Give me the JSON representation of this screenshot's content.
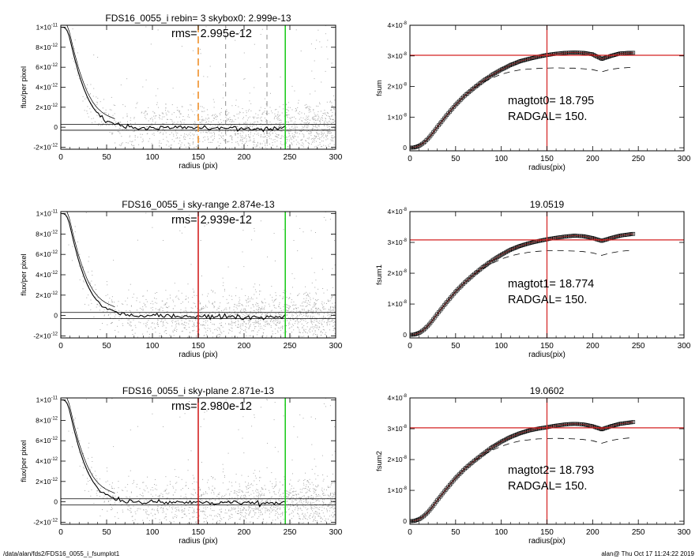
{
  "footer": {
    "path": "/data/alan/fds2/FDS16_0055_i_fsumplot1",
    "user_time": "alan@  Thu Oct 17 11:24:22 2019"
  },
  "colors": {
    "scatter": "#aaaaaa",
    "profile": "#000000",
    "red_marker": "#d42020",
    "green_marker": "#22cc22",
    "orange_marker": "#f0902a"
  },
  "chart_data": [
    {
      "type": "scatter",
      "title": "FDS16_0055_i rebin= 3    skybox0:  2.999e-13",
      "annotation": "rms= 2.995e-12",
      "xlabel": "radius (pix)",
      "ylabel": "flux/per pixel",
      "xlim": [
        0,
        300
      ],
      "ylim": [
        -2.2e-12,
        1.02e-11
      ],
      "xticks": [
        "0",
        "50",
        "100",
        "150",
        "200",
        "250",
        "300"
      ],
      "yticks": [
        {
          "v": 1e-11,
          "m": "1×10",
          "e": "-11"
        },
        {
          "v": 8e-12,
          "m": "8×10",
          "e": "-12"
        },
        {
          "v": 6e-12,
          "m": "6×10",
          "e": "-12"
        },
        {
          "v": 4e-12,
          "m": "4×10",
          "e": "-12"
        },
        {
          "v": 2e-12,
          "m": "2×10",
          "e": "-12"
        },
        {
          "v": 0,
          "m": "0",
          "e": ""
        },
        {
          "v": -2e-12,
          "m": "-2×10",
          "e": "-12"
        }
      ],
      "profile": {
        "x": [
          1,
          3,
          5,
          8,
          10,
          12,
          15,
          18,
          20,
          25,
          30,
          35,
          40,
          45,
          50,
          60,
          70,
          80,
          90,
          100,
          110,
          120,
          130,
          140,
          150,
          160,
          170,
          180,
          190,
          200,
          210,
          220,
          230,
          240,
          245
        ],
        "y": [
          1e-11,
          1e-11,
          9.9e-12,
          9.5e-12,
          8.8e-12,
          8e-12,
          6.9e-12,
          5.9e-12,
          5.2e-12,
          3.9e-12,
          2.8e-12,
          2e-12,
          1.4e-12,
          1e-12,
          7e-13,
          3e-13,
          1e-13,
          0,
          -1e-13,
          0,
          -5e-14,
          -1e-13,
          0,
          -1e-13,
          0,
          -1e-13,
          -2e-13,
          0,
          -1e-13,
          -2e-13,
          -1e-13,
          -2e-13,
          -1e-13,
          -1e-13,
          0
        ]
      },
      "hlines": [
        3e-13,
        -3e-13
      ],
      "vlines": [
        {
          "x": 150,
          "color": "orange",
          "dashed": true
        },
        {
          "x": 245,
          "color": "green",
          "dashed": false
        }
      ],
      "faint_dashed_vlines": [
        180,
        225
      ],
      "scatter_cloud": true
    },
    {
      "type": "line",
      "title": "",
      "annotation": [
        "magtot0=  18.795",
        "RADGAL=    150."
      ],
      "xlabel": "radius(pix)",
      "ylabel": "fsum",
      "xlim": [
        0,
        300
      ],
      "ylim": [
        -1e-09,
        4e-08
      ],
      "xticks": [
        "0",
        "50",
        "100",
        "150",
        "200",
        "250",
        "300"
      ],
      "yticks": [
        {
          "v": 4e-08,
          "m": "4×10",
          "e": "-8"
        },
        {
          "v": 3e-08,
          "m": "3×10",
          "e": "-8"
        },
        {
          "v": 2e-08,
          "m": "2×10",
          "e": "-8"
        },
        {
          "v": 1e-08,
          "m": "1×10",
          "e": "-8"
        },
        {
          "v": 0,
          "m": "0",
          "e": ""
        }
      ],
      "main_curve": {
        "x": [
          0,
          5,
          10,
          15,
          20,
          25,
          30,
          40,
          50,
          60,
          70,
          80,
          90,
          100,
          110,
          120,
          130,
          140,
          150,
          160,
          170,
          180,
          190,
          200,
          210,
          220,
          230,
          240,
          245
        ],
        "y": [
          0,
          1e-10,
          6e-10,
          1.6e-09,
          3e-09,
          4.8e-09,
          6.8e-09,
          1.05e-08,
          1.4e-08,
          1.7e-08,
          1.95e-08,
          2.18e-08,
          2.38e-08,
          2.55e-08,
          2.7e-08,
          2.82e-08,
          2.9e-08,
          2.97e-08,
          3.03e-08,
          3.07e-08,
          3.1e-08,
          3.11e-08,
          3.1e-08,
          3.05e-08,
          2.9e-08,
          3e-08,
          3.08e-08,
          3.1e-08,
          3.1e-08
        ]
      },
      "dashed_curve": {
        "x": [
          70,
          80,
          90,
          100,
          110,
          120,
          130,
          140,
          150,
          160,
          170,
          180,
          190,
          200,
          210,
          220,
          230,
          240,
          245
        ],
        "y": [
          1.95e-08,
          2.13e-08,
          2.28e-08,
          2.4e-08,
          2.48e-08,
          2.54e-08,
          2.57e-08,
          2.59e-08,
          2.6e-08,
          2.61e-08,
          2.6e-08,
          2.6e-08,
          2.58e-08,
          2.55e-08,
          2.48e-08,
          2.56e-08,
          2.6e-08,
          2.62e-08,
          2.63e-08
        ]
      },
      "hline": 3.02e-08,
      "vline": 150
    },
    {
      "type": "scatter",
      "title": "FDS16_0055_i sky-range  2.874e-13",
      "annotation": "rms= 2.939e-12",
      "xlabel": "radius (pix)",
      "ylabel": "flux/per pixel",
      "xlim": [
        0,
        300
      ],
      "ylim": [
        -2.2e-12,
        1.02e-11
      ],
      "xticks": [
        "0",
        "50",
        "100",
        "150",
        "200",
        "250",
        "300"
      ],
      "yticks": [
        {
          "v": 1e-11,
          "m": "1×10",
          "e": "-11"
        },
        {
          "v": 8e-12,
          "m": "8×10",
          "e": "-12"
        },
        {
          "v": 6e-12,
          "m": "6×10",
          "e": "-12"
        },
        {
          "v": 4e-12,
          "m": "4×10",
          "e": "-12"
        },
        {
          "v": 2e-12,
          "m": "2×10",
          "e": "-12"
        },
        {
          "v": 0,
          "m": "0",
          "e": ""
        },
        {
          "v": -2e-12,
          "m": "-2×10",
          "e": "-12"
        }
      ],
      "profile": {
        "x": [
          1,
          3,
          5,
          8,
          10,
          12,
          15,
          18,
          20,
          25,
          30,
          35,
          40,
          45,
          50,
          60,
          70,
          80,
          90,
          100,
          110,
          120,
          130,
          140,
          150,
          160,
          170,
          180,
          190,
          200,
          210,
          220,
          230,
          240,
          245
        ],
        "y": [
          1e-11,
          1e-11,
          9.9e-12,
          9.5e-12,
          8.8e-12,
          8e-12,
          6.9e-12,
          5.9e-12,
          5.2e-12,
          3.9e-12,
          2.8e-12,
          2e-12,
          1.4e-12,
          1e-12,
          7e-13,
          3e-13,
          1e-13,
          0,
          -1e-13,
          0,
          -5e-14,
          -1e-13,
          0,
          -1e-13,
          0,
          -1e-13,
          -2e-13,
          0,
          -1e-13,
          -2e-13,
          -1e-13,
          -2e-13,
          -1e-13,
          -1e-13,
          0
        ]
      },
      "hlines": [
        3e-13,
        -3e-13
      ],
      "vlines": [
        {
          "x": 150,
          "color": "red",
          "dashed": false
        },
        {
          "x": 245,
          "color": "green",
          "dashed": false
        }
      ],
      "faint_dashed_vlines": [],
      "scatter_cloud": true
    },
    {
      "type": "line",
      "title": "19.0519",
      "annotation": [
        "magtot1=  18.774",
        "RADGAL=    150."
      ],
      "xlabel": "radius(pix)",
      "ylabel": "fsum1",
      "xlim": [
        0,
        300
      ],
      "ylim": [
        -1e-09,
        4e-08
      ],
      "xticks": [
        "0",
        "50",
        "100",
        "150",
        "200",
        "250",
        "300"
      ],
      "yticks": [
        {
          "v": 4e-08,
          "m": "4×10",
          "e": "-8"
        },
        {
          "v": 3e-08,
          "m": "3×10",
          "e": "-8"
        },
        {
          "v": 2e-08,
          "m": "2×10",
          "e": "-8"
        },
        {
          "v": 1e-08,
          "m": "1×10",
          "e": "-8"
        },
        {
          "v": 0,
          "m": "0",
          "e": ""
        }
      ],
      "main_curve": {
        "x": [
          0,
          5,
          10,
          15,
          20,
          25,
          30,
          40,
          50,
          60,
          70,
          80,
          90,
          100,
          110,
          120,
          130,
          140,
          150,
          160,
          170,
          180,
          190,
          200,
          210,
          220,
          230,
          240,
          245
        ],
        "y": [
          0,
          1e-10,
          6e-10,
          1.6e-09,
          3e-09,
          4.8e-09,
          6.8e-09,
          1.05e-08,
          1.4e-08,
          1.7e-08,
          1.96e-08,
          2.2e-08,
          2.41e-08,
          2.6e-08,
          2.76e-08,
          2.88e-08,
          2.97e-08,
          3.04e-08,
          3.1e-08,
          3.15e-08,
          3.19e-08,
          3.22e-08,
          3.2e-08,
          3.14e-08,
          3.05e-08,
          3.14e-08,
          3.22e-08,
          3.26e-08,
          3.28e-08
        ]
      },
      "dashed_curve": {
        "x": [
          70,
          80,
          90,
          100,
          110,
          120,
          130,
          140,
          150,
          160,
          170,
          180,
          190,
          200,
          210,
          220,
          230,
          240,
          245
        ],
        "y": [
          1.96e-08,
          2.15e-08,
          2.32e-08,
          2.46e-08,
          2.56e-08,
          2.63e-08,
          2.68e-08,
          2.71e-08,
          2.73e-08,
          2.74e-08,
          2.73e-08,
          2.72e-08,
          2.7e-08,
          2.66e-08,
          2.58e-08,
          2.66e-08,
          2.71e-08,
          2.74e-08,
          2.75e-08
        ]
      },
      "hline": 3.08e-08,
      "vline": 150
    },
    {
      "type": "scatter",
      "title": "FDS16_0055_i sky-plane  2.871e-13",
      "annotation": "rms= 2.980e-12",
      "xlabel": "radius (pix)",
      "ylabel": "flux/per pixel",
      "xlim": [
        0,
        300
      ],
      "ylim": [
        -2.2e-12,
        1.02e-11
      ],
      "xticks": [
        "0",
        "50",
        "100",
        "150",
        "200",
        "250",
        "300"
      ],
      "yticks": [
        {
          "v": 1e-11,
          "m": "1×10",
          "e": "-11"
        },
        {
          "v": 8e-12,
          "m": "8×10",
          "e": "-12"
        },
        {
          "v": 6e-12,
          "m": "6×10",
          "e": "-12"
        },
        {
          "v": 4e-12,
          "m": "4×10",
          "e": "-12"
        },
        {
          "v": 2e-12,
          "m": "2×10",
          "e": "-12"
        },
        {
          "v": 0,
          "m": "0",
          "e": ""
        },
        {
          "v": -2e-12,
          "m": "-2×10",
          "e": "-12"
        }
      ],
      "profile": {
        "x": [
          1,
          3,
          5,
          8,
          10,
          12,
          15,
          18,
          20,
          25,
          30,
          35,
          40,
          45,
          50,
          60,
          70,
          80,
          90,
          100,
          110,
          120,
          130,
          140,
          150,
          160,
          170,
          180,
          190,
          200,
          210,
          220,
          230,
          240,
          245
        ],
        "y": [
          1e-11,
          1e-11,
          9.9e-12,
          9.5e-12,
          8.8e-12,
          8e-12,
          6.9e-12,
          5.9e-12,
          5.2e-12,
          3.9e-12,
          2.8e-12,
          2e-12,
          1.4e-12,
          1e-12,
          7e-13,
          3e-13,
          1e-13,
          0,
          -1e-13,
          0,
          -5e-14,
          -1e-13,
          0,
          -1e-13,
          0,
          -1e-13,
          -2e-13,
          0,
          -1e-13,
          -2e-13,
          -1e-13,
          -2e-13,
          -1e-13,
          -1e-13,
          0
        ]
      },
      "hlines": [
        3e-13,
        -3e-13
      ],
      "vlines": [
        {
          "x": 150,
          "color": "red",
          "dashed": false
        },
        {
          "x": 245,
          "color": "green",
          "dashed": false
        }
      ],
      "faint_dashed_vlines": [],
      "scatter_cloud": true
    },
    {
      "type": "line",
      "title": "19.0602",
      "annotation": [
        "magtot2=  18.793",
        "RADGAL=    150."
      ],
      "xlabel": "radius(pix)",
      "ylabel": "fsum2",
      "xlim": [
        0,
        300
      ],
      "ylim": [
        -1e-09,
        4e-08
      ],
      "xticks": [
        "0",
        "50",
        "100",
        "150",
        "200",
        "250",
        "300"
      ],
      "yticks": [
        {
          "v": 4e-08,
          "m": "4×10",
          "e": "-8"
        },
        {
          "v": 3e-08,
          "m": "3×10",
          "e": "-8"
        },
        {
          "v": 2e-08,
          "m": "2×10",
          "e": "-8"
        },
        {
          "v": 1e-08,
          "m": "1×10",
          "e": "-8"
        },
        {
          "v": 0,
          "m": "0",
          "e": ""
        }
      ],
      "main_curve": {
        "x": [
          0,
          5,
          10,
          15,
          20,
          25,
          30,
          40,
          50,
          60,
          70,
          80,
          90,
          100,
          110,
          120,
          130,
          140,
          150,
          160,
          170,
          180,
          190,
          200,
          210,
          220,
          230,
          240,
          245
        ],
        "y": [
          0,
          1e-10,
          6e-10,
          1.6e-09,
          3e-09,
          4.8e-09,
          6.8e-09,
          1.05e-08,
          1.4e-08,
          1.7e-08,
          1.95e-08,
          2.18e-08,
          2.4e-08,
          2.58e-08,
          2.73e-08,
          2.85e-08,
          2.94e-08,
          3e-08,
          3.05e-08,
          3.1e-08,
          3.14e-08,
          3.16e-08,
          3.14e-08,
          3.08e-08,
          2.98e-08,
          3.08e-08,
          3.16e-08,
          3.2e-08,
          3.22e-08
        ]
      },
      "dashed_curve": {
        "x": [
          70,
          80,
          90,
          100,
          110,
          120,
          130,
          140,
          150,
          160,
          170,
          180,
          190,
          200,
          210,
          220,
          230,
          240,
          245
        ],
        "y": [
          1.95e-08,
          2.14e-08,
          2.3e-08,
          2.43e-08,
          2.53e-08,
          2.6e-08,
          2.64e-08,
          2.67e-08,
          2.68e-08,
          2.69e-08,
          2.68e-08,
          2.67e-08,
          2.65e-08,
          2.61e-08,
          2.53e-08,
          2.62e-08,
          2.67e-08,
          2.7e-08,
          2.71e-08
        ]
      },
      "hline": 3.03e-08,
      "vline": 150
    }
  ]
}
